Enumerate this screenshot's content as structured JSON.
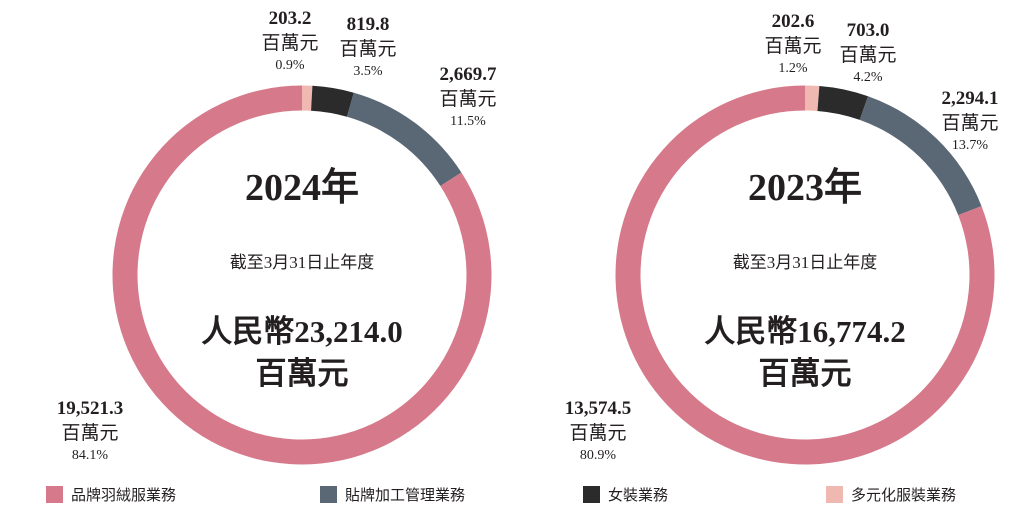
{
  "chart_data": [
    {
      "type": "donut",
      "year_label": "2024年",
      "period_label": "截至3月31日止年度",
      "total_line1": "人民幣23,214.0",
      "total_line2": "百萬元",
      "series": [
        {
          "name": "品牌羽絨服業務",
          "value": 19521.3,
          "value_label": "19,521.3",
          "unit": "百萬元",
          "percent": "84.1%"
        },
        {
          "name": "貼牌加工管理業務",
          "value": 2669.7,
          "value_label": "2,669.7",
          "unit": "百萬元",
          "percent": "11.5%"
        },
        {
          "name": "女裝業務",
          "value": 819.8,
          "value_label": "819.8",
          "unit": "百萬元",
          "percent": "3.5%"
        },
        {
          "name": "多元化服裝業務",
          "value": 203.2,
          "value_label": "203.2",
          "unit": "百萬元",
          "percent": "0.9%"
        }
      ]
    },
    {
      "type": "donut",
      "year_label": "2023年",
      "period_label": "截至3月31日止年度",
      "total_line1": "人民幣16,774.2",
      "total_line2": "百萬元",
      "series": [
        {
          "name": "品牌羽絨服業務",
          "value": 13574.5,
          "value_label": "13,574.5",
          "unit": "百萬元",
          "percent": "80.9%"
        },
        {
          "name": "貼牌加工管理業務",
          "value": 2294.1,
          "value_label": "2,294.1",
          "unit": "百萬元",
          "percent": "13.7%"
        },
        {
          "name": "女裝業務",
          "value": 703.0,
          "value_label": "703.0",
          "unit": "百萬元",
          "percent": "4.2%"
        },
        {
          "name": "多元化服裝業務",
          "value": 202.6,
          "value_label": "202.6",
          "unit": "百萬元",
          "percent": "1.2%"
        }
      ]
    }
  ],
  "legend": [
    {
      "label": "品牌羽絨服業務",
      "color": "#d6798a"
    },
    {
      "label": "貼牌加工管理業務",
      "color": "#5a6875"
    },
    {
      "label": "女裝業務",
      "color": "#2b2b2b"
    },
    {
      "label": "多元化服裝業務",
      "color": "#efb8b0"
    }
  ]
}
